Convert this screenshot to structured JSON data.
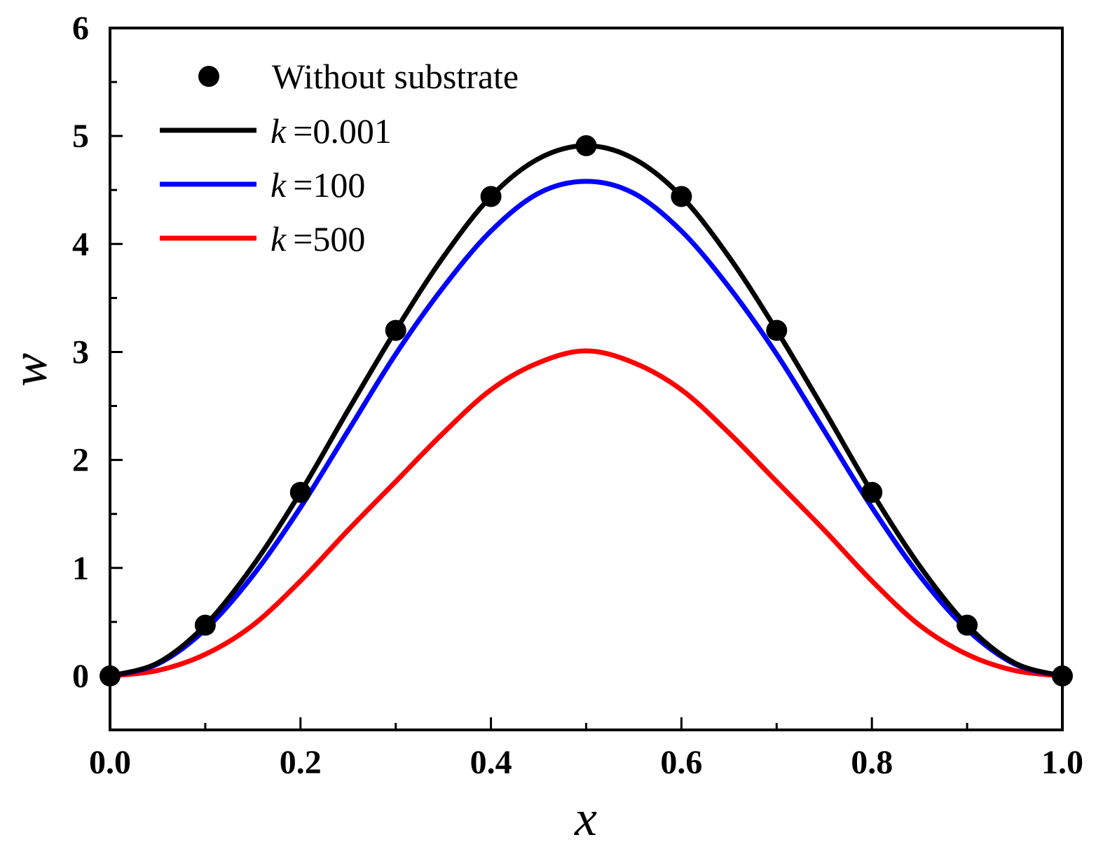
{
  "chart_data": {
    "type": "line",
    "title": "",
    "xlabel": "x",
    "ylabel": "w",
    "xlim": [
      0.0,
      1.0
    ],
    "ylim": [
      -0.5,
      6.0
    ],
    "xticks": [
      0.0,
      0.2,
      0.4,
      0.6,
      0.8,
      1.0
    ],
    "xtick_labels": [
      "0.0",
      "0.2",
      "0.4",
      "0.6",
      "0.8",
      "1.0"
    ],
    "yticks": [
      0,
      1,
      2,
      3,
      4,
      5,
      6
    ],
    "ytick_labels": [
      "0",
      "1",
      "2",
      "3",
      "4",
      "5",
      "6"
    ],
    "legend_position": "top-left",
    "series": [
      {
        "name": "Without substrate",
        "legend_label": "Without substrate",
        "style": "markers",
        "color": "#000000",
        "x": [
          0.0,
          0.1,
          0.2,
          0.3,
          0.4,
          0.5,
          0.6,
          0.7,
          0.8,
          0.9,
          1.0
        ],
        "y": [
          0.0,
          0.47,
          1.7,
          3.2,
          4.44,
          4.91,
          4.44,
          3.2,
          1.7,
          0.47,
          0.0
        ]
      },
      {
        "name": "k =0.001",
        "legend_k": "k",
        "legend_value": "=0.001",
        "style": "line",
        "color": "#000000",
        "x": [
          0.0,
          0.05,
          0.1,
          0.15,
          0.2,
          0.25,
          0.3,
          0.35,
          0.4,
          0.45,
          0.5,
          0.55,
          0.6,
          0.65,
          0.7,
          0.75,
          0.8,
          0.85,
          0.9,
          0.95,
          1.0
        ],
        "y": [
          0.0,
          0.12,
          0.47,
          1.02,
          1.7,
          2.46,
          3.2,
          3.88,
          4.44,
          4.79,
          4.91,
          4.79,
          4.44,
          3.88,
          3.2,
          2.46,
          1.7,
          1.02,
          0.47,
          0.12,
          0.0
        ]
      },
      {
        "name": "k =100",
        "legend_k": "k",
        "legend_value": "=100",
        "style": "line",
        "color": "#0000ff",
        "x": [
          0.0,
          0.05,
          0.1,
          0.15,
          0.2,
          0.25,
          0.3,
          0.35,
          0.4,
          0.45,
          0.5,
          0.55,
          0.6,
          0.65,
          0.7,
          0.75,
          0.8,
          0.85,
          0.9,
          0.95,
          1.0
        ],
        "y": [
          0.0,
          0.11,
          0.43,
          0.93,
          1.56,
          2.27,
          2.98,
          3.6,
          4.12,
          4.47,
          4.58,
          4.47,
          4.12,
          3.6,
          2.98,
          2.27,
          1.56,
          0.93,
          0.43,
          0.11,
          0.0
        ]
      },
      {
        "name": "k =500",
        "legend_k": "k",
        "legend_value": "=500",
        "style": "line",
        "color": "#ff0000",
        "x": [
          0.0,
          0.05,
          0.1,
          0.15,
          0.2,
          0.25,
          0.3,
          0.35,
          0.4,
          0.45,
          0.5,
          0.55,
          0.6,
          0.65,
          0.7,
          0.75,
          0.8,
          0.85,
          0.9,
          0.95,
          1.0
        ],
        "y": [
          0.0,
          0.05,
          0.2,
          0.47,
          0.88,
          1.35,
          1.8,
          2.25,
          2.65,
          2.9,
          3.01,
          2.9,
          2.65,
          2.25,
          1.8,
          1.35,
          0.88,
          0.47,
          0.2,
          0.05,
          0.0
        ]
      }
    ]
  }
}
